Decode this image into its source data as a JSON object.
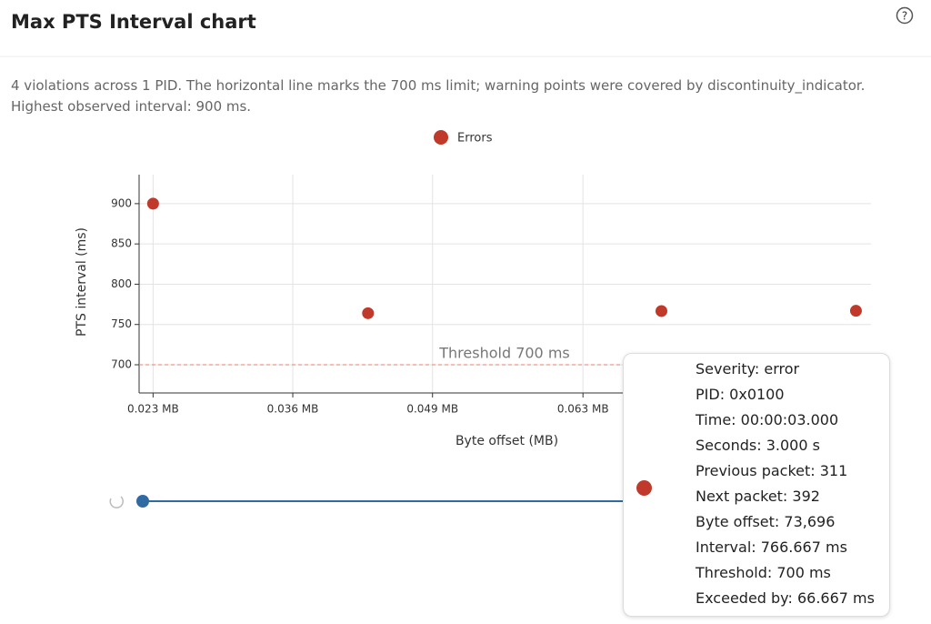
{
  "header": {
    "title": "Max PTS Interval chart"
  },
  "description": "4 violations across 1 PID. The horizontal line marks the 700 ms limit; warning points were covered by discontinuity_indicator. Highest observed interval: 900 ms.",
  "chart_data": {
    "type": "scatter",
    "x_label": "Byte offset (MB)",
    "y_label": "PTS interval (ms)",
    "series": [
      {
        "name": "Errors",
        "color": "#c0392b",
        "x": [
          0.023,
          0.043,
          0.0703,
          0.0884
        ],
        "values": [
          900,
          764,
          766.667,
          767
        ]
      }
    ],
    "xlim": [
      0.0217,
      0.0898
    ],
    "xticks": [
      {
        "value": 0.023,
        "label": "0.023 MB"
      },
      {
        "value": 0.036,
        "label": "0.036 MB"
      },
      {
        "value": 0.049,
        "label": "0.049 MB"
      },
      {
        "value": 0.063,
        "label": "0.063 MB"
      }
    ],
    "ylim": [
      665,
      936
    ],
    "yticks": [
      700,
      750,
      800,
      850,
      900
    ],
    "grid": true,
    "threshold": {
      "value": 700,
      "label": "Threshold 700 ms",
      "color": "#e8826e"
    },
    "legend": "top"
  },
  "tooltip": {
    "lines": [
      "Severity: error",
      "PID: 0x0100",
      "Time: 00:00:03.000",
      "Seconds: 3.000 s",
      "Previous packet: 311",
      "Next packet: 392",
      "Byte offset: 73,696",
      "Interval: 766.667 ms",
      "Threshold: 700 ms",
      "Exceeded by: 66.667 ms"
    ]
  }
}
